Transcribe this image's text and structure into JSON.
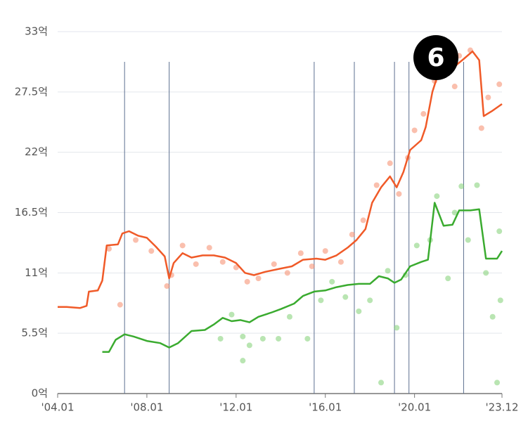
{
  "chart_data": {
    "type": "line",
    "xlim": [
      2004.0,
      2023.92
    ],
    "xticks": [
      {
        "value": 2004.0,
        "label": "'04.01"
      },
      {
        "value": 2008.0,
        "label": "'08.01"
      },
      {
        "value": 2012.0,
        "label": "'12.01"
      },
      {
        "value": 2016.0,
        "label": "'16.01"
      },
      {
        "value": 2020.0,
        "label": "'20.01"
      },
      {
        "value": 2023.92,
        "label": "'23.12"
      }
    ],
    "ylim": [
      0,
      33
    ],
    "yticks": [
      {
        "value": 0,
        "label": "0억"
      },
      {
        "value": 5.5,
        "label": "5.5억"
      },
      {
        "value": 11,
        "label": "11억"
      },
      {
        "value": 16.5,
        "label": "16.5억"
      },
      {
        "value": 22,
        "label": "22억"
      },
      {
        "value": 27.5,
        "label": "27.5억"
      },
      {
        "value": 33,
        "label": "33억"
      }
    ],
    "grid": true,
    "event_lines": [
      2007.0,
      2009.0,
      2015.5,
      2017.3,
      2019.1,
      2019.75,
      2022.2
    ],
    "annotation": "6",
    "lines": [
      {
        "color": "#f05a28",
        "x": [
          2004.0,
          2004.4,
          2005.0,
          2005.3,
          2005.4,
          2005.8,
          2006.0,
          2006.2,
          2006.7,
          2006.9,
          2007.2,
          2007.6,
          2008.0,
          2008.4,
          2008.8,
          2009.0,
          2009.2,
          2009.6,
          2010.0,
          2010.5,
          2011.0,
          2011.5,
          2012.0,
          2012.4,
          2012.8,
          2013.3,
          2014.0,
          2014.5,
          2015.0,
          2015.6,
          2016.0,
          2016.5,
          2017.0,
          2017.4,
          2017.8,
          2018.1,
          2018.5,
          2018.9,
          2019.2,
          2019.5,
          2019.8,
          2020.3,
          2020.5,
          2020.8,
          2021.0,
          2021.5,
          2021.9,
          2022.2,
          2022.6,
          2022.9,
          2023.1,
          2023.5,
          2023.92
        ],
        "values": [
          7.9,
          7.9,
          7.8,
          8.0,
          9.3,
          9.4,
          10.3,
          13.5,
          13.6,
          14.6,
          14.8,
          14.4,
          14.2,
          13.4,
          12.5,
          10.5,
          11.9,
          12.8,
          12.4,
          12.6,
          12.6,
          12.4,
          11.9,
          11.0,
          10.8,
          11.1,
          11.4,
          11.6,
          12.2,
          12.3,
          12.2,
          12.6,
          13.3,
          14.0,
          15.0,
          17.4,
          18.8,
          19.8,
          18.8,
          20.2,
          22.2,
          23.1,
          24.3,
          27.5,
          28.8,
          29.1,
          30.0,
          30.5,
          31.2,
          30.4,
          25.3,
          25.8,
          26.4
        ]
      },
      {
        "color": "#3aab2f",
        "x": [
          2006.0,
          2006.3,
          2006.6,
          2007.0,
          2007.4,
          2008.0,
          2008.6,
          2009.0,
          2009.4,
          2010.0,
          2010.6,
          2011.0,
          2011.4,
          2011.8,
          2012.2,
          2012.6,
          2013.0,
          2013.6,
          2014.0,
          2014.6,
          2015.0,
          2015.5,
          2016.0,
          2016.5,
          2017.0,
          2017.5,
          2018.0,
          2018.4,
          2018.8,
          2019.1,
          2019.4,
          2019.8,
          2020.3,
          2020.6,
          2020.9,
          2021.3,
          2021.7,
          2022.0,
          2022.5,
          2022.9,
          2023.2,
          2023.7,
          2023.92
        ],
        "values": [
          3.8,
          3.8,
          4.9,
          5.4,
          5.2,
          4.8,
          4.6,
          4.2,
          4.6,
          5.7,
          5.8,
          6.3,
          6.9,
          6.6,
          6.7,
          6.5,
          7.0,
          7.4,
          7.7,
          8.2,
          8.9,
          9.3,
          9.4,
          9.7,
          9.9,
          10.0,
          10.0,
          10.7,
          10.5,
          10.1,
          10.4,
          11.6,
          12.0,
          12.2,
          17.4,
          15.3,
          15.4,
          16.7,
          16.7,
          16.8,
          12.3,
          12.3,
          13.0
        ]
      }
    ],
    "points": [
      {
        "color": "#f58a6a",
        "x": [
          2006.3,
          2006.8,
          2007.5,
          2008.2,
          2008.9,
          2009.1,
          2009.6,
          2010.2,
          2010.8,
          2011.4,
          2012.0,
          2012.5,
          2013.0,
          2013.7,
          2014.3,
          2014.9,
          2015.4,
          2016.0,
          2016.7,
          2017.2,
          2017.7,
          2018.3,
          2018.9,
          2019.3,
          2019.7,
          2020.0,
          2020.4,
          2020.9,
          2021.4,
          2021.8,
          2022.0,
          2022.5,
          2023.0,
          2023.3,
          2023.8
        ],
        "values": [
          13.2,
          8.1,
          14.0,
          13.0,
          9.8,
          10.8,
          13.5,
          11.8,
          13.3,
          12.0,
          11.5,
          10.2,
          10.5,
          11.8,
          11.0,
          12.8,
          11.6,
          13.0,
          12.0,
          14.5,
          15.8,
          19.0,
          21.0,
          18.2,
          21.5,
          24.0,
          25.5,
          28.5,
          29.5,
          28.0,
          30.8,
          31.3,
          24.2,
          27.0,
          28.2
        ]
      },
      {
        "color": "#7fd072",
        "x": [
          2011.3,
          2011.8,
          2012.3,
          2012.3,
          2012.6,
          2013.2,
          2013.9,
          2014.4,
          2015.2,
          2015.8,
          2016.3,
          2016.9,
          2017.5,
          2018.0,
          2018.5,
          2018.8,
          2019.2,
          2019.6,
          2020.1,
          2020.7,
          2021.0,
          2021.5,
          2021.8,
          2022.1,
          2022.4,
          2022.8,
          2023.2,
          2023.5,
          2023.7,
          2023.8,
          2023.85
        ],
        "values": [
          5.0,
          7.2,
          5.2,
          3.0,
          4.4,
          5.0,
          5.0,
          7.0,
          5.0,
          8.5,
          10.2,
          8.8,
          7.5,
          8.5,
          1.0,
          11.2,
          6.0,
          10.8,
          13.5,
          14.0,
          18.0,
          10.5,
          16.5,
          18.9,
          14.0,
          19.0,
          11.0,
          7.0,
          1.0,
          14.8,
          8.5
        ]
      }
    ]
  }
}
